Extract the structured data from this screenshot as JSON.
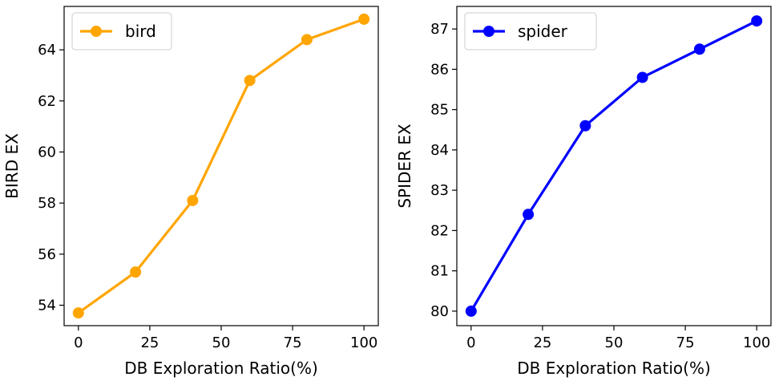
{
  "chart_data": [
    {
      "type": "line",
      "title": "",
      "xlabel": "DB Exploration Ratio(%)",
      "ylabel": "BIRD EX",
      "xlim": [
        -5,
        105
      ],
      "ylim": [
        53.2,
        65.7
      ],
      "xticks": [
        0,
        25,
        50,
        75,
        100
      ],
      "xtick_labels": [
        "0",
        "25",
        "50",
        "75",
        "100"
      ],
      "yticks": [
        54,
        56,
        58,
        60,
        62,
        64
      ],
      "ytick_labels": [
        "54",
        "56",
        "58",
        "60",
        "62",
        "64"
      ],
      "legend_position": "top-left",
      "series": [
        {
          "name": "bird",
          "color": "#FFA500",
          "x": [
            0,
            20,
            40,
            60,
            80,
            100
          ],
          "values": [
            53.7,
            55.3,
            58.1,
            62.8,
            64.4,
            65.2
          ]
        }
      ]
    },
    {
      "type": "line",
      "title": "",
      "xlabel": "DB Exploration Ratio(%)",
      "ylabel": "SPIDER EX",
      "xlim": [
        -5,
        105
      ],
      "ylim": [
        79.64,
        87.56
      ],
      "xticks": [
        0,
        25,
        50,
        75,
        100
      ],
      "xtick_labels": [
        "0",
        "25",
        "50",
        "75",
        "100"
      ],
      "yticks": [
        80,
        81,
        82,
        83,
        84,
        85,
        86,
        87
      ],
      "ytick_labels": [
        "80",
        "81",
        "82",
        "83",
        "84",
        "85",
        "86",
        "87"
      ],
      "legend_position": "top-left",
      "series": [
        {
          "name": "spider",
          "color": "#0000FF",
          "x": [
            0,
            20,
            40,
            60,
            80,
            100
          ],
          "values": [
            80.0,
            82.4,
            84.6,
            85.8,
            86.5,
            87.2
          ]
        }
      ]
    }
  ]
}
